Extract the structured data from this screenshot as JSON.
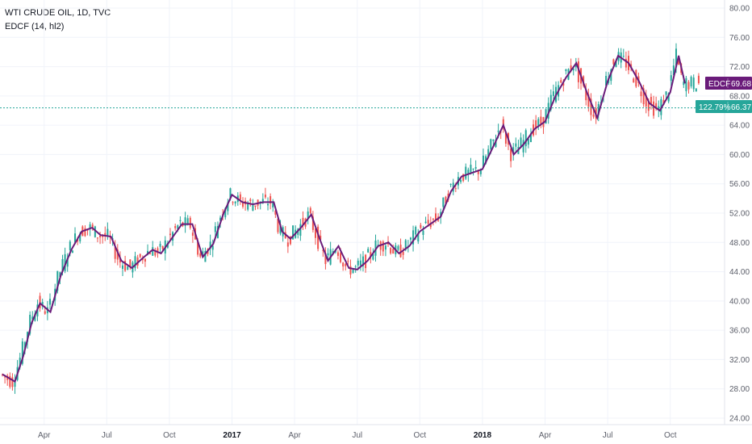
{
  "legend": {
    "symbol_line": "WTI CRUDE OIL, 1D, TVC",
    "indicator_line": "EDCF (14, hl2)"
  },
  "colors": {
    "up_candle": "#26a69a",
    "down_candle": "#ef5350",
    "edcf_line": "#6a1b7a",
    "edcf_tag": "#6a1b7a",
    "price_line": "#26a69a",
    "grid": "#f0f3fa"
  },
  "tags": {
    "edcf_label": "EDCF",
    "edcf_value": "69.68",
    "price_change": "122.79%",
    "price_value": "66.37"
  },
  "chart_data": {
    "type": "line",
    "title": "WTI CRUDE OIL, 1D, TVC",
    "y_ticks": [
      "80.00",
      "76.00",
      "72.00",
      "68.00",
      "64.00",
      "60.00",
      "56.00",
      "52.00",
      "48.00",
      "44.00",
      "40.00",
      "36.00",
      "32.00",
      "28.00",
      "24.00"
    ],
    "ylim": [
      24,
      80
    ],
    "x_ticks": [
      "Apr",
      "Jul",
      "Oct",
      "2017",
      "Apr",
      "Jul",
      "Oct",
      "2018",
      "Apr",
      "Jul",
      "Oct"
    ],
    "x_ticks_bold": [
      false,
      false,
      false,
      true,
      false,
      false,
      false,
      true,
      false,
      false,
      false
    ],
    "x_range": [
      0,
      34.6
    ],
    "x_tick_positions": [
      2.0,
      5.0,
      8.0,
      11.0,
      14.0,
      17.0,
      20.0,
      23.0,
      26.0,
      29.0,
      32.0
    ],
    "last_price": 66.37,
    "last_price_change": "122.79%",
    "grid": true,
    "series": [
      {
        "name": "EDCF",
        "x": [
          0,
          0.6,
          1.0,
          1.4,
          1.8,
          2.3,
          2.8,
          3.3,
          3.8,
          4.3,
          4.7,
          5.2,
          5.7,
          6.2,
          6.7,
          7.2,
          7.6,
          8.1,
          8.6,
          9.1,
          9.6,
          10.1,
          10.6,
          11.0,
          11.5,
          12.0,
          12.5,
          13.0,
          13.4,
          13.8,
          14.3,
          14.8,
          15.2,
          15.6,
          16.1,
          16.6,
          17.0,
          17.5,
          18.0,
          18.5,
          19.0,
          19.5,
          20.0,
          20.5,
          21.0,
          21.5,
          22.0,
          22.5,
          23.0,
          23.5,
          24.0,
          24.5,
          25.0,
          25.5,
          26.0,
          26.5,
          27.0,
          27.5,
          28.0,
          28.5,
          29.0,
          29.5,
          30.0,
          30.5,
          31.0,
          31.5,
          32.0,
          32.4,
          32.7
        ],
        "values": [
          30.0,
          29.0,
          32.5,
          37.0,
          39.7,
          38.5,
          43.5,
          47.0,
          49.5,
          50.0,
          49.0,
          48.8,
          45.5,
          44.5,
          45.8,
          47.0,
          46.5,
          48.5,
          50.5,
          50.5,
          46.0,
          47.8,
          52.0,
          54.5,
          53.5,
          53.2,
          53.5,
          53.5,
          49.5,
          48.5,
          50.0,
          51.8,
          48.5,
          45.5,
          47.5,
          44.5,
          44.3,
          45.5,
          47.5,
          48.0,
          46.5,
          47.5,
          49.5,
          50.5,
          51.5,
          55.0,
          57.0,
          57.5,
          58.0,
          61.0,
          64.0,
          60.0,
          61.5,
          63.5,
          64.5,
          68.0,
          70.5,
          72.5,
          68.5,
          65.0,
          70.0,
          73.5,
          72.5,
          70.0,
          67.0,
          66.0,
          68.5,
          73.5,
          69.7
        ]
      }
    ]
  }
}
